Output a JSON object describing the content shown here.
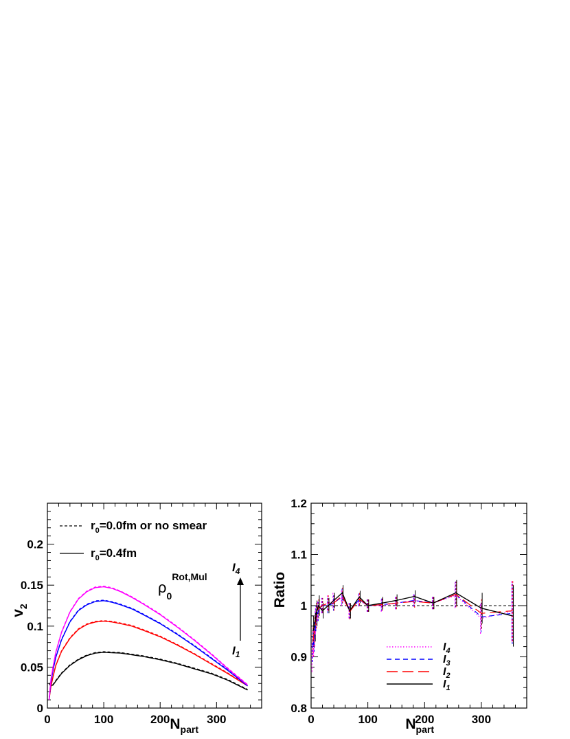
{
  "chart_data": [
    {
      "type": "line",
      "xlabel": "N",
      "xlabel_sub": "part",
      "ylabel": "v",
      "ylabel_sub": "2",
      "xlim": [
        0,
        380
      ],
      "ylim": [
        0,
        0.25
      ],
      "xticks": [
        "0",
        "100",
        "200",
        "300"
      ],
      "yticks": [
        "0",
        "0.05",
        "0.1",
        "0.15",
        "0.2"
      ],
      "legend": [
        {
          "label_main": "r",
          "label_sub": "0",
          "label_rest": "=0.0fm or no smear",
          "style": "dashed"
        },
        {
          "label_main": "r",
          "label_sub": "0",
          "label_rest": "=0.4fm",
          "style": "solid"
        }
      ],
      "annotation": {
        "main": "ρ",
        "sub": "0",
        "sup": "Rot,Mul"
      },
      "arrow_labels": {
        "top": "I",
        "top_sub": "4",
        "bottom": "I",
        "bottom_sub": "1"
      },
      "x": [
        3,
        6,
        10,
        15,
        25,
        40,
        55,
        70,
        85,
        100,
        115,
        130,
        150,
        170,
        200,
        230,
        260,
        290,
        320,
        355
      ],
      "series": [
        {
          "color": "#000000",
          "values": [
            0.03,
            0.027,
            0.028,
            0.033,
            0.042,
            0.052,
            0.059,
            0.064,
            0.067,
            0.068,
            0.0675,
            0.067,
            0.065,
            0.063,
            0.059,
            0.054,
            0.048,
            0.042,
            0.034,
            0.022
          ]
        },
        {
          "color": "#ff0000",
          "values": [
            0.01,
            0.025,
            0.038,
            0.052,
            0.069,
            0.085,
            0.096,
            0.102,
            0.105,
            0.106,
            0.105,
            0.103,
            0.1,
            0.095,
            0.087,
            0.077,
            0.066,
            0.054,
            0.042,
            0.027
          ]
        },
        {
          "color": "#0000ff",
          "values": [
            0.01,
            0.03,
            0.046,
            0.062,
            0.083,
            0.105,
            0.119,
            0.126,
            0.13,
            0.131,
            0.129,
            0.126,
            0.121,
            0.114,
            0.103,
            0.09,
            0.076,
            0.061,
            0.046,
            0.027
          ]
        },
        {
          "color": "#ff00ff",
          "values": [
            0.01,
            0.033,
            0.05,
            0.068,
            0.092,
            0.117,
            0.133,
            0.142,
            0.147,
            0.148,
            0.146,
            0.142,
            0.135,
            0.127,
            0.114,
            0.099,
            0.083,
            0.066,
            0.048,
            0.028
          ]
        }
      ]
    },
    {
      "type": "line",
      "xlabel": "N",
      "xlabel_sub": "part",
      "ylabel": "Ratio",
      "xlim": [
        0,
        380
      ],
      "ylim": [
        0.8,
        1.2
      ],
      "xticks": [
        "0",
        "100",
        "200",
        "300"
      ],
      "yticks": [
        "0.8",
        "0.9",
        "1",
        "1.1",
        "1.2"
      ],
      "reference_line": 1.0,
      "legend": [
        {
          "label": "I",
          "sub": "4",
          "style": "dotted",
          "color": "#ff00ff"
        },
        {
          "label": "I",
          "sub": "3",
          "style": "dashed",
          "color": "#0000ff"
        },
        {
          "label": "I",
          "sub": "2",
          "style": "longdash",
          "color": "#ff0000"
        },
        {
          "label": "I",
          "sub": "1",
          "style": "solid",
          "color": "#000000"
        }
      ],
      "x": [
        3,
        6,
        9,
        13,
        20,
        30,
        40,
        55,
        68,
        85,
        100,
        125,
        150,
        182,
        215,
        255,
        300,
        355
      ],
      "series": [
        {
          "name": "I",
          "color": "#ff00ff",
          "values": [
            0.9,
            0.93,
            0.97,
            0.99,
            1.0,
            1.005,
            1.01,
            1.015,
            0.99,
            1.01,
            1.0,
            1.0,
            1.005,
            1.01,
            1.005,
            1.02,
            0.975,
            0.99
          ]
        },
        {
          "name": "I",
          "color": "#0000ff",
          "values": [
            0.92,
            0.94,
            0.975,
            0.99,
            1.0,
            1.0,
            1.005,
            1.018,
            0.99,
            1.012,
            1.0,
            1.002,
            1.005,
            1.01,
            1.005,
            1.022,
            0.978,
            0.985
          ]
        },
        {
          "name": "I",
          "color": "#ff0000",
          "values": [
            0.93,
            0.95,
            0.98,
            0.995,
            1.0,
            1.005,
            1.005,
            1.02,
            0.988,
            1.013,
            1.0,
            1.002,
            1.005,
            1.008,
            1.005,
            1.022,
            0.985,
            0.99
          ]
        },
        {
          "name": "I",
          "color": "#000000",
          "values": [
            0.95,
            0.96,
            0.985,
            1.0,
            0.99,
            1.0,
            1.01,
            1.025,
            0.99,
            1.017,
            1.0,
            1.005,
            1.01,
            1.018,
            1.005,
            1.025,
            0.995,
            0.98
          ]
        }
      ],
      "error_bars": [
        0.03,
        0.03,
        0.025,
        0.02,
        0.015,
        0.015,
        0.015,
        0.015,
        0.015,
        0.012,
        0.012,
        0.012,
        0.012,
        0.012,
        0.012,
        0.025,
        0.03,
        0.06
      ]
    }
  ]
}
